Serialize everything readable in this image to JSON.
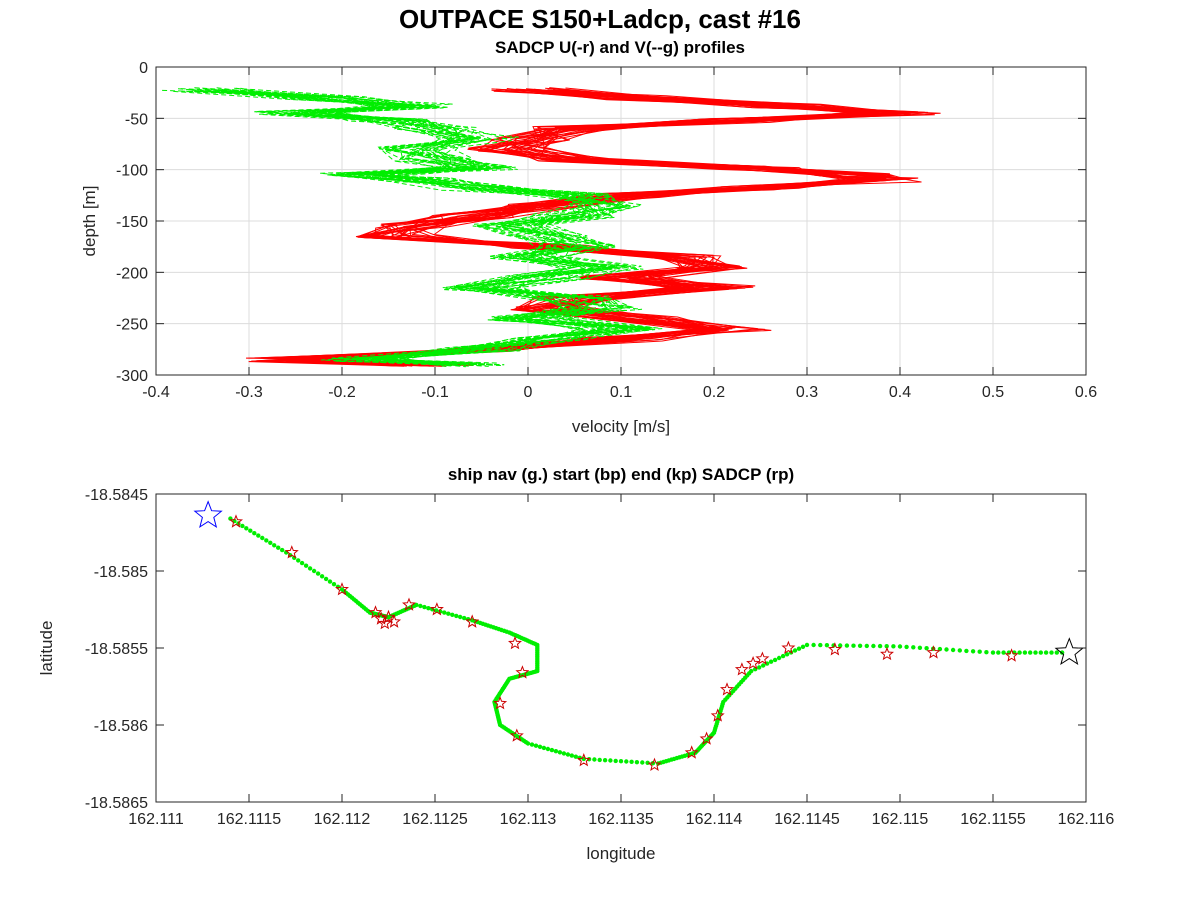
{
  "figure_title": "OUTPACE S150+Ladcp, cast #16",
  "colors": {
    "u": "#ff0000",
    "v": "#00ee00",
    "nav": "#00ee00",
    "start": "#0000ff",
    "end": "#000000",
    "sadcp": "#cc0000"
  },
  "chart_data": [
    {
      "type": "line",
      "title": "SADCP U(-r) and V(--g) profiles",
      "xlabel": "velocity [m/s]",
      "ylabel": "depth [m]",
      "xlim": [
        -0.4,
        0.6
      ],
      "ylim": [
        -300,
        0
      ],
      "grid": true,
      "xticks": [
        -0.4,
        -0.3,
        -0.2,
        -0.1,
        0,
        0.1,
        0.2,
        0.3,
        0.4,
        0.5,
        0.6
      ],
      "xtick_labels": [
        "-0.4",
        "-0.3",
        "-0.2",
        "-0.1",
        "0",
        "0.1",
        "0.2",
        "0.3",
        "0.4",
        "0.5",
        "0.6"
      ],
      "yticks": [
        0,
        -50,
        -100,
        -150,
        -200,
        -250,
        -300
      ],
      "ytick_labels": [
        "0",
        "-50",
        "-100",
        "-150",
        "-200",
        "-250",
        "-300"
      ],
      "depth": [
        -22,
        -30,
        -38,
        -45,
        -52,
        -60,
        -70,
        -80,
        -90,
        -98,
        -105,
        -110,
        -118,
        -125,
        -135,
        -145,
        -155,
        -165,
        -175,
        -185,
        -195,
        -205,
        -215,
        -225,
        -235,
        -245,
        -255,
        -265,
        -275,
        -285,
        -290
      ],
      "series": [
        {
          "name": "U",
          "style": "solid",
          "color": "#ff0000",
          "values": [
            0.0,
            0.12,
            0.28,
            0.4,
            0.22,
            0.05,
            0.0,
            -0.02,
            0.05,
            0.25,
            0.35,
            0.38,
            0.25,
            0.1,
            0.02,
            -0.06,
            -0.12,
            -0.14,
            0.02,
            0.18,
            0.2,
            0.1,
            0.2,
            0.05,
            0.02,
            0.12,
            0.22,
            0.1,
            -0.05,
            -0.26,
            -0.1
          ]
        },
        {
          "name": "V",
          "style": "dashed",
          "color": "#00ee00",
          "values": [
            -0.35,
            -0.22,
            -0.12,
            -0.25,
            -0.15,
            -0.1,
            -0.05,
            -0.12,
            -0.1,
            -0.05,
            -0.18,
            -0.12,
            -0.05,
            0.05,
            0.08,
            0.05,
            -0.02,
            0.02,
            0.05,
            0.0,
            0.08,
            0.02,
            -0.05,
            0.05,
            0.08,
            0.0,
            0.1,
            0.02,
            -0.05,
            -0.18,
            -0.05
          ]
        }
      ]
    },
    {
      "type": "scatter",
      "title": "ship nav (g.) start (bp) end (kp) SADCP (rp)",
      "xlabel": "longitude",
      "ylabel": "latitude",
      "xlim": [
        162.111,
        162.116
      ],
      "ylim": [
        -18.5865,
        -18.5845
      ],
      "grid": false,
      "xticks": [
        162.111,
        162.1115,
        162.112,
        162.1125,
        162.113,
        162.1135,
        162.114,
        162.1145,
        162.115,
        162.1155,
        162.116
      ],
      "xtick_labels": [
        "162.111",
        "162.1115",
        "162.112",
        "162.1125",
        "162.113",
        "162.1135",
        "162.114",
        "162.1145",
        "162.115",
        "162.1155",
        "162.116"
      ],
      "yticks": [
        -18.5845,
        -18.585,
        -18.5855,
        -18.586,
        -18.5865
      ],
      "ytick_labels": [
        "-18.5845",
        "-18.585",
        "-18.5855",
        "-18.586",
        "-18.5865"
      ],
      "nav_track": [
        [
          162.1114,
          -18.58466
        ],
        [
          162.1117,
          -18.58488
        ],
        [
          162.112,
          -18.58512
        ],
        [
          162.11215,
          -18.58527
        ],
        [
          162.11225,
          -18.5853
        ],
        [
          162.1124,
          -18.58522
        ],
        [
          162.1127,
          -18.58532
        ],
        [
          162.1129,
          -18.5854
        ],
        [
          162.11305,
          -18.58548
        ],
        [
          162.11305,
          -18.58565
        ],
        [
          162.1129,
          -18.5857
        ],
        [
          162.11282,
          -18.58585
        ],
        [
          162.11285,
          -18.586
        ],
        [
          162.113,
          -18.58612
        ],
        [
          162.1133,
          -18.58622
        ],
        [
          162.1137,
          -18.58625
        ],
        [
          162.1139,
          -18.58618
        ],
        [
          162.114,
          -18.58605
        ],
        [
          162.11405,
          -18.58585
        ],
        [
          162.1142,
          -18.58565
        ],
        [
          162.1145,
          -18.58548
        ],
        [
          162.115,
          -18.58549
        ],
        [
          162.1155,
          -18.58553
        ],
        [
          162.1159,
          -18.58553
        ]
      ],
      "start": [
        162.11128,
        -18.58464
      ],
      "end": [
        162.11591,
        -18.58553
      ],
      "sadcp_points": [
        [
          162.11143,
          -18.58468
        ],
        [
          162.11173,
          -18.58488
        ],
        [
          162.112,
          -18.58512
        ],
        [
          162.11218,
          -18.58527
        ],
        [
          162.11221,
          -18.58531
        ],
        [
          162.11223,
          -18.58534
        ],
        [
          162.11225,
          -18.5853
        ],
        [
          162.11228,
          -18.58533
        ],
        [
          162.11236,
          -18.58522
        ],
        [
          162.11251,
          -18.58525
        ],
        [
          162.1127,
          -18.58533
        ],
        [
          162.11293,
          -18.58547
        ],
        [
          162.11297,
          -18.58566
        ],
        [
          162.11285,
          -18.58586
        ],
        [
          162.11294,
          -18.58607
        ],
        [
          162.1133,
          -18.58623
        ],
        [
          162.11368,
          -18.58626
        ],
        [
          162.11388,
          -18.58618
        ],
        [
          162.11396,
          -18.58609
        ],
        [
          162.11402,
          -18.58594
        ],
        [
          162.11407,
          -18.58577
        ],
        [
          162.11415,
          -18.58564
        ],
        [
          162.11421,
          -18.5856
        ],
        [
          162.11426,
          -18.58557
        ],
        [
          162.1144,
          -18.5855
        ],
        [
          162.11465,
          -18.58551
        ],
        [
          162.11493,
          -18.58554
        ],
        [
          162.11518,
          -18.58553
        ],
        [
          162.1156,
          -18.58555
        ]
      ]
    }
  ]
}
